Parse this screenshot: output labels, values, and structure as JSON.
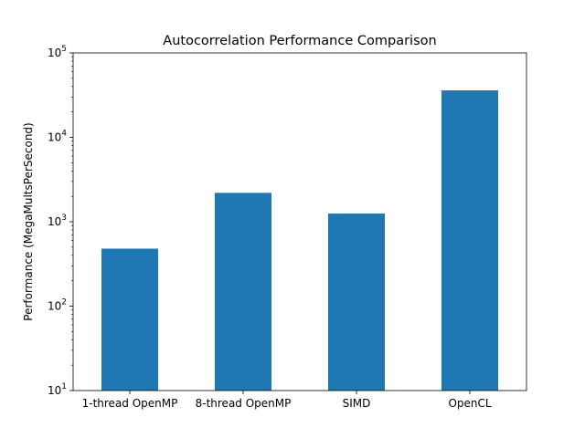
{
  "chart_data": {
    "type": "bar",
    "title": "Autocorrelation Performance Comparison",
    "xlabel": "",
    "ylabel": "Performance (MegaMultsPerSecond)",
    "yscale": "log",
    "ylim": [
      10,
      100000
    ],
    "yticks": [
      10,
      100,
      1000,
      10000,
      100000
    ],
    "ytick_labels": [
      {
        "base": "10",
        "exp": "1"
      },
      {
        "base": "10",
        "exp": "2"
      },
      {
        "base": "10",
        "exp": "3"
      },
      {
        "base": "10",
        "exp": "4"
      },
      {
        "base": "10",
        "exp": "5"
      }
    ],
    "categories": [
      "1-thread OpenMP",
      "8-thread OpenMP",
      "SIMD",
      "OpenCL"
    ],
    "values": [
      480,
      2200,
      1250,
      36000
    ],
    "bar_color": "#1f77b4",
    "grid": false,
    "legend": "none"
  }
}
